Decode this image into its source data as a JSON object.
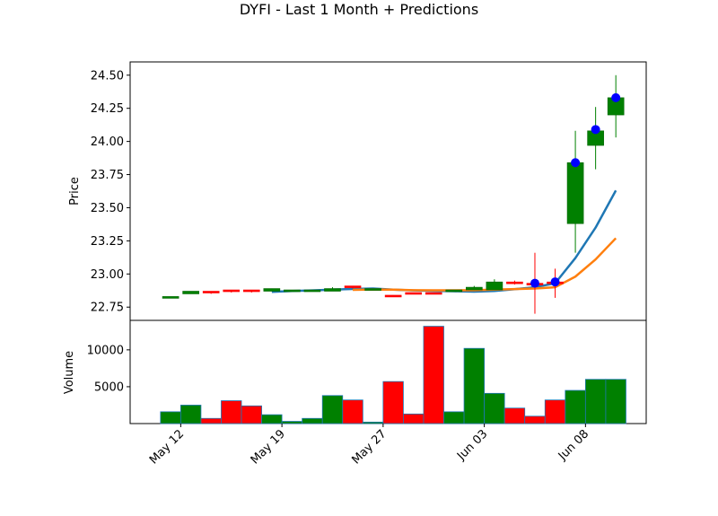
{
  "chart_data": {
    "type": "candlestick",
    "title": "DYFI - Last 1 Month + Predictions",
    "price_panel": {
      "ylabel": "Price",
      "ylim": [
        22.65,
        24.6
      ],
      "yticks": [
        "22.75",
        "23.00",
        "23.25",
        "23.50",
        "23.75",
        "24.00",
        "24.25",
        "24.50"
      ],
      "ytick_values": [
        22.75,
        23.0,
        23.25,
        23.5,
        23.75,
        24.0,
        24.25,
        24.5
      ]
    },
    "volume_panel": {
      "ylabel": "Volume",
      "ylim": [
        0,
        14000
      ],
      "yticks": [
        "5000",
        "10000"
      ],
      "ytick_values": [
        5000,
        10000
      ]
    },
    "xlim": [
      -2.0,
      23.5
    ],
    "xticks": [
      "May 12",
      "May 19",
      "May 27",
      "Jun 03",
      "Jun 08"
    ],
    "xtick_positions": [
      0.5,
      5.5,
      10.5,
      15.5,
      20.5
    ],
    "colors": {
      "up": "#008000",
      "down": "#ff0000",
      "volume_edge": "#1f77b4",
      "ma_short": "#1f77b4",
      "ma_long": "#ff7f0e",
      "prediction": "#0000ff"
    },
    "candles": [
      {
        "open": 22.83,
        "close": 22.83,
        "high": 22.83,
        "low": 22.83,
        "volume": 1600
      },
      {
        "open": 22.85,
        "close": 22.87,
        "high": 22.87,
        "low": 22.85,
        "volume": 2500
      },
      {
        "open": 22.87,
        "close": 22.86,
        "high": 22.87,
        "low": 22.85,
        "volume": 700
      },
      {
        "open": 22.88,
        "close": 22.87,
        "high": 22.88,
        "low": 22.86,
        "volume": 3100
      },
      {
        "open": 22.88,
        "close": 22.87,
        "high": 22.88,
        "low": 22.86,
        "volume": 2400
      },
      {
        "open": 22.87,
        "close": 22.89,
        "high": 22.89,
        "low": 22.87,
        "volume": 1200
      },
      {
        "open": 22.88,
        "close": 22.88,
        "high": 22.88,
        "low": 22.88,
        "volume": 300
      },
      {
        "open": 22.88,
        "close": 22.88,
        "high": 22.88,
        "low": 22.88,
        "volume": 700
      },
      {
        "open": 22.87,
        "close": 22.89,
        "high": 22.9,
        "low": 22.87,
        "volume": 3800
      },
      {
        "open": 22.91,
        "close": 22.9,
        "high": 22.91,
        "low": 22.89,
        "volume": 3200
      },
      {
        "open": 22.89,
        "close": 22.89,
        "high": 22.89,
        "low": 22.89,
        "volume": 200
      },
      {
        "open": 22.84,
        "close": 22.83,
        "high": 22.84,
        "low": 22.83,
        "volume": 5700
      },
      {
        "open": 22.86,
        "close": 22.85,
        "high": 22.86,
        "low": 22.85,
        "volume": 1300
      },
      {
        "open": 22.86,
        "close": 22.85,
        "high": 22.86,
        "low": 22.85,
        "volume": 13200
      },
      {
        "open": 22.87,
        "close": 22.88,
        "high": 22.88,
        "low": 22.87,
        "volume": 1600
      },
      {
        "open": 22.88,
        "close": 22.9,
        "high": 22.91,
        "low": 22.88,
        "volume": 10200
      },
      {
        "open": 22.88,
        "close": 22.94,
        "high": 22.96,
        "low": 22.88,
        "volume": 4100
      },
      {
        "open": 22.94,
        "close": 22.93,
        "high": 22.95,
        "low": 22.92,
        "volume": 2100
      },
      {
        "open": 22.93,
        "close": 22.92,
        "high": 23.16,
        "low": 22.7,
        "volume": 1000
      },
      {
        "open": 22.94,
        "close": 22.93,
        "high": 23.04,
        "low": 22.82,
        "volume": 3200
      },
      {
        "open": 23.38,
        "close": 23.84,
        "high": 24.08,
        "low": 23.16,
        "volume": 4500
      },
      {
        "open": 23.97,
        "close": 24.08,
        "high": 24.26,
        "low": 23.79,
        "volume": 6000
      },
      {
        "open": 24.2,
        "close": 24.33,
        "high": 24.5,
        "low": 24.03,
        "volume": 6000
      }
    ],
    "ma_short": [
      [
        5,
        22.865
      ],
      [
        6,
        22.872
      ],
      [
        7,
        22.876
      ],
      [
        8,
        22.882
      ],
      [
        9,
        22.887
      ],
      [
        10,
        22.89
      ],
      [
        11,
        22.882
      ],
      [
        12,
        22.876
      ],
      [
        13,
        22.873
      ],
      [
        14,
        22.87
      ],
      [
        15,
        22.867
      ],
      [
        16,
        22.872
      ],
      [
        17,
        22.885
      ],
      [
        18,
        22.9
      ],
      [
        19,
        22.93
      ],
      [
        20,
        23.12
      ],
      [
        21,
        23.35
      ],
      [
        22,
        23.63
      ]
    ],
    "ma_long": [
      [
        9,
        22.88
      ],
      [
        10,
        22.883
      ],
      [
        11,
        22.882
      ],
      [
        12,
        22.878
      ],
      [
        13,
        22.877
      ],
      [
        14,
        22.877
      ],
      [
        15,
        22.878
      ],
      [
        16,
        22.882
      ],
      [
        17,
        22.886
      ],
      [
        18,
        22.89
      ],
      [
        19,
        22.9
      ],
      [
        20,
        22.98
      ],
      [
        21,
        23.11
      ],
      [
        22,
        23.27
      ]
    ],
    "predictions": [
      [
        18,
        22.93
      ],
      [
        19,
        22.94
      ],
      [
        20,
        23.84
      ],
      [
        21,
        24.09
      ],
      [
        22,
        24.33
      ]
    ]
  }
}
